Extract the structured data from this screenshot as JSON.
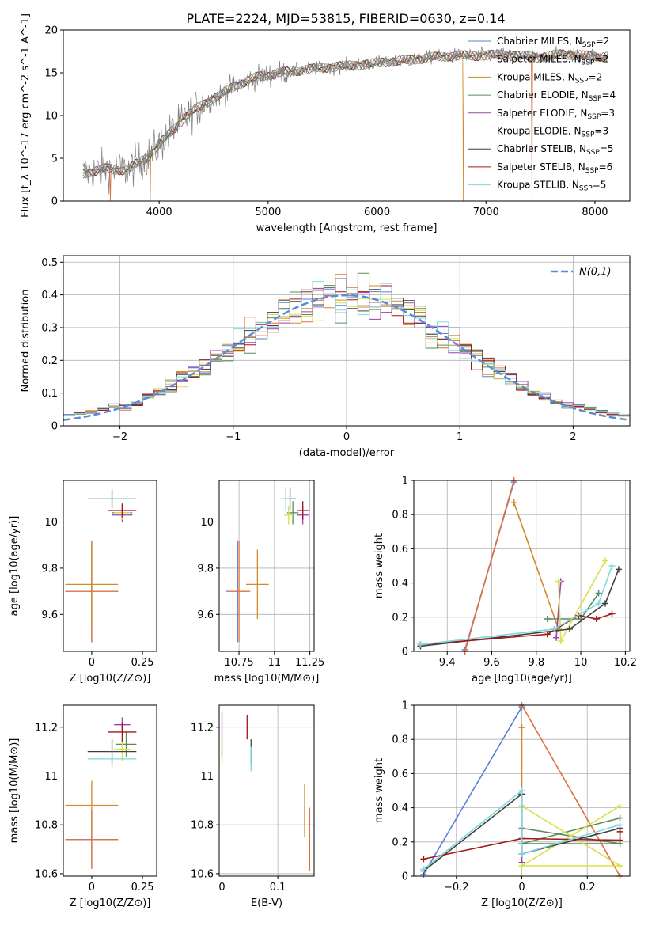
{
  "title": "PLATE=2224, MJD=53815, FIBERID=0630, z=0.14",
  "models": [
    {
      "name": "Chabrier MILES",
      "nssp": "2",
      "color": "#5b7fd6"
    },
    {
      "name": "Salpeter MILES",
      "nssp": "2",
      "color": "#e0703a"
    },
    {
      "name": "Kroupa MILES",
      "nssp": "2",
      "color": "#d08a2a"
    },
    {
      "name": "Chabrier ELODIE",
      "nssp": "4",
      "color": "#5a8a5a"
    },
    {
      "name": "Salpeter ELODIE",
      "nssp": "3",
      "color": "#a040b0"
    },
    {
      "name": "Kroupa ELODIE",
      "nssp": "3",
      "color": "#d8e04a"
    },
    {
      "name": "Chabrier STELIB",
      "nssp": "5",
      "color": "#404040"
    },
    {
      "name": "Salpeter STELIB",
      "nssp": "6",
      "color": "#a01818"
    },
    {
      "name": "Kroupa STELIB",
      "nssp": "5",
      "color": "#7ed8e0"
    }
  ],
  "chart_data": [
    {
      "id": "spectrum",
      "type": "line",
      "xlabel": "wavelength [Angstrom, rest frame]",
      "ylabel": "Flux [f_λ 10^-17 erg cm^-2 s^-1 A^-1]",
      "xlim": [
        3120,
        8320
      ],
      "ylim": [
        0,
        20
      ],
      "xticks": [
        4000,
        5000,
        6000,
        7000,
        8000
      ],
      "yticks": [
        0,
        5,
        10,
        15,
        20
      ],
      "observed_color": "#808080",
      "spectrum_knots": {
        "x": [
          3300,
          3500,
          3700,
          3900,
          4100,
          4300,
          4500,
          4700,
          4900,
          5100,
          5300,
          5500,
          5700,
          5900,
          6100,
          6300,
          6500,
          6700,
          6900,
          7100,
          7300,
          7500,
          7700,
          7900,
          8100
        ],
        "y": [
          3.2,
          3.8,
          3.6,
          5.2,
          8.0,
          10.5,
          12.0,
          13.5,
          14.5,
          15.0,
          15.3,
          15.6,
          15.8,
          16.0,
          16.3,
          16.5,
          16.8,
          17.0,
          17.0,
          17.1,
          17.0,
          16.8,
          17.2,
          17.0,
          16.9
        ]
      },
      "model_drops": [
        {
          "model": "Salpeter MILES",
          "x": 3550
        },
        {
          "model": "Kroupa MILES",
          "x": 3920
        },
        {
          "model": "Kroupa MILES",
          "x": 6790
        },
        {
          "model": "Salpeter MILES",
          "x": 7420
        }
      ]
    },
    {
      "id": "residuals",
      "type": "line",
      "xlabel": "(data-model)/error",
      "ylabel": "Normed distribution",
      "xlim": [
        -2.5,
        2.5
      ],
      "ylim": [
        0,
        0.52
      ],
      "xticks": [
        -2,
        -1,
        0,
        1,
        2
      ],
      "yticks": [
        0.0,
        0.1,
        0.2,
        0.3,
        0.4,
        0.5
      ],
      "legend": "N(0,1)",
      "legend_loc": "top-right",
      "grid": true,
      "normal_color": "#5b8bd8",
      "bin_width": 0.1
    },
    {
      "id": "age-vs-Z",
      "type": "scatter",
      "xlabel": "Z [log10(Z/Z⊙)]",
      "ylabel": "age  [log10(age/yr)]",
      "xlim": [
        -0.14,
        0.32
      ],
      "ylim": [
        9.44,
        10.18
      ],
      "xticks": [
        0.0,
        0.25
      ],
      "yticks": [
        9.6,
        9.8,
        10.0
      ],
      "errorbars": [
        {
          "model": "Chabrier MILES",
          "x": 0.0,
          "y": 9.7,
          "xerr": 0.13,
          "yerr": 0.22
        },
        {
          "model": "Salpeter MILES",
          "x": 0.0,
          "y": 9.7,
          "xerr": 0.13,
          "yerr": 0.22
        },
        {
          "model": "Kroupa MILES",
          "x": 0.0,
          "y": 9.73,
          "xerr": 0.13,
          "yerr": 0.18
        },
        {
          "model": "Chabrier ELODIE",
          "x": 0.15,
          "y": 10.04,
          "xerr": 0.05,
          "yerr": 0.03
        },
        {
          "model": "Salpeter ELODIE",
          "x": 0.15,
          "y": 10.03,
          "xerr": 0.05,
          "yerr": 0.03
        },
        {
          "model": "Kroupa ELODIE",
          "x": 0.15,
          "y": 10.04,
          "xerr": 0.04,
          "yerr": 0.03
        },
        {
          "model": "Chabrier STELIB",
          "x": 0.1,
          "y": 10.1,
          "xerr": 0.12,
          "yerr": 0.04
        },
        {
          "model": "Salpeter STELIB",
          "x": 0.15,
          "y": 10.05,
          "xerr": 0.07,
          "yerr": 0.03
        },
        {
          "model": "Kroupa STELIB",
          "x": 0.1,
          "y": 10.1,
          "xerr": 0.12,
          "yerr": 0.04
        }
      ]
    },
    {
      "id": "age-vs-mass",
      "type": "scatter",
      "xlabel": "mass [log10(M/M⊙)]",
      "ylabel": "",
      "xlim": [
        10.61,
        11.28
      ],
      "ylim": [
        9.44,
        10.18
      ],
      "xticks": [
        10.75,
        11.0,
        11.25
      ],
      "yticks": [
        9.6,
        9.8,
        10.0
      ],
      "grid": true,
      "errorbars": [
        {
          "model": "Chabrier MILES",
          "x": 10.74,
          "y": 9.7,
          "xerr": 0.08,
          "yerr": 0.22
        },
        {
          "model": "Salpeter MILES",
          "x": 10.75,
          "y": 9.7,
          "xerr": 0.08,
          "yerr": 0.22
        },
        {
          "model": "Kroupa MILES",
          "x": 10.88,
          "y": 9.73,
          "xerr": 0.08,
          "yerr": 0.15
        },
        {
          "model": "Chabrier ELODIE",
          "x": 11.13,
          "y": 10.04,
          "xerr": 0.04,
          "yerr": 0.05
        },
        {
          "model": "Salpeter ELODIE",
          "x": 11.2,
          "y": 10.03,
          "xerr": 0.04,
          "yerr": 0.04
        },
        {
          "model": "Kroupa ELODIE",
          "x": 11.1,
          "y": 10.03,
          "xerr": 0.03,
          "yerr": 0.04
        },
        {
          "model": "Chabrier STELIB",
          "x": 11.11,
          "y": 10.1,
          "xerr": 0.04,
          "yerr": 0.05
        },
        {
          "model": "Salpeter STELIB",
          "x": 11.2,
          "y": 10.05,
          "xerr": 0.04,
          "yerr": 0.04
        },
        {
          "model": "Kroupa STELIB",
          "x": 11.08,
          "y": 10.1,
          "xerr": 0.04,
          "yerr": 0.05
        }
      ]
    },
    {
      "id": "massweight-vs-age",
      "type": "line",
      "xlabel": "age  [log10(age/yr)]",
      "ylabel": "mass weight",
      "xlim": [
        9.25,
        10.22
      ],
      "ylim": [
        0,
        1
      ],
      "xticks": [
        9.4,
        9.6,
        9.8,
        10.0,
        10.2
      ],
      "yticks": [
        0.0,
        0.2,
        0.4,
        0.6,
        0.8,
        1.0
      ],
      "grid": true,
      "series": [
        {
          "model": "Chabrier MILES",
          "x": [
            9.48,
            9.7
          ],
          "y": [
            0.01,
            0.99
          ]
        },
        {
          "model": "Salpeter MILES",
          "x": [
            9.48,
            9.7
          ],
          "y": [
            0.0,
            1.0
          ]
        },
        {
          "model": "Kroupa MILES",
          "x": [
            9.7,
            9.9
          ],
          "y": [
            0.87,
            0.13
          ]
        },
        {
          "model": "Chabrier ELODIE",
          "x": [
            9.85,
            10.0,
            10.08
          ],
          "y": [
            0.19,
            0.19,
            0.34
          ]
        },
        {
          "model": "Salpeter ELODIE",
          "x": [
            9.89,
            9.91
          ],
          "y": [
            0.08,
            0.41
          ]
        },
        {
          "model": "Kroupa ELODIE",
          "x": [
            9.9,
            9.91,
            10.11
          ],
          "y": [
            0.41,
            0.06,
            0.53
          ]
        },
        {
          "model": "Chabrier STELIB",
          "x": [
            9.28,
            9.95,
            10.11,
            10.17
          ],
          "y": [
            0.03,
            0.13,
            0.28,
            0.48
          ]
        },
        {
          "model": "Salpeter STELIB",
          "x": [
            9.28,
            9.85,
            9.99,
            10.07,
            10.14
          ],
          "y": [
            0.04,
            0.1,
            0.21,
            0.19,
            0.22
          ]
        },
        {
          "model": "Kroupa STELIB",
          "x": [
            9.28,
            9.88,
            10.08,
            10.14
          ],
          "y": [
            0.04,
            0.13,
            0.28,
            0.5
          ]
        }
      ]
    },
    {
      "id": "mass-vs-Z",
      "type": "scatter",
      "xlabel": "Z [log10(Z/Z⊙)]",
      "ylabel": "mass [log10(M/M⊙)]",
      "xlim": [
        -0.14,
        0.32
      ],
      "ylim": [
        10.59,
        11.29
      ],
      "xticks": [
        0.0,
        0.25
      ],
      "yticks": [
        10.6,
        10.8,
        11.0,
        11.2
      ],
      "errorbars": [
        {
          "model": "Chabrier MILES",
          "x": 0.0,
          "y": 10.74,
          "xerr": 0.13,
          "yerr": 0.12
        },
        {
          "model": "Salpeter MILES",
          "x": 0.0,
          "y": 10.74,
          "xerr": 0.13,
          "yerr": 0.12
        },
        {
          "model": "Kroupa MILES",
          "x": 0.0,
          "y": 10.88,
          "xerr": 0.13,
          "yerr": 0.1
        },
        {
          "model": "Chabrier ELODIE",
          "x": 0.17,
          "y": 11.13,
          "xerr": 0.05,
          "yerr": 0.05
        },
        {
          "model": "Salpeter ELODIE",
          "x": 0.15,
          "y": 11.21,
          "xerr": 0.04,
          "yerr": 0.03
        },
        {
          "model": "Kroupa ELODIE",
          "x": 0.15,
          "y": 11.11,
          "xerr": 0.04,
          "yerr": 0.05
        },
        {
          "model": "Chabrier STELIB",
          "x": 0.1,
          "y": 11.1,
          "xerr": 0.12,
          "yerr": 0.05
        },
        {
          "model": "Salpeter STELIB",
          "x": 0.15,
          "y": 11.18,
          "xerr": 0.07,
          "yerr": 0.04
        },
        {
          "model": "Kroupa STELIB",
          "x": 0.1,
          "y": 11.07,
          "xerr": 0.12,
          "yerr": 0.04
        }
      ]
    },
    {
      "id": "mass-vs-ebv",
      "type": "scatter",
      "xlabel": "E(B-V)",
      "ylabel": "",
      "xlim": [
        -0.005,
        0.165
      ],
      "ylim": [
        10.59,
        11.29
      ],
      "xticks": [
        0.0,
        0.1
      ],
      "yticks": [
        10.6,
        10.8,
        11.0,
        11.2
      ],
      "grid": true,
      "errorbars": [
        {
          "model": "Chabrier MILES",
          "x": 0.157,
          "y": 10.74,
          "xerr": 0.0,
          "yerr": 0.13
        },
        {
          "model": "Salpeter MILES",
          "x": 0.157,
          "y": 10.74,
          "xerr": 0.0,
          "yerr": 0.13
        },
        {
          "model": "Kroupa MILES",
          "x": 0.148,
          "y": 10.86,
          "xerr": 0.0,
          "yerr": 0.11
        },
        {
          "model": "Chabrier ELODIE",
          "x": 0.0,
          "y": 11.12,
          "xerr": 0.0,
          "yerr": 0.04
        },
        {
          "model": "Salpeter ELODIE",
          "x": 0.0,
          "y": 11.21,
          "xerr": 0.0,
          "yerr": 0.05
        },
        {
          "model": "Kroupa ELODIE",
          "x": 0.0,
          "y": 11.1,
          "xerr": 0.0,
          "yerr": 0.05
        },
        {
          "model": "Chabrier STELIB",
          "x": 0.052,
          "y": 11.1,
          "xerr": 0.0,
          "yerr": 0.05
        },
        {
          "model": "Salpeter STELIB",
          "x": 0.045,
          "y": 11.2,
          "xerr": 0.0,
          "yerr": 0.05
        },
        {
          "model": "Kroupa STELIB",
          "x": 0.052,
          "y": 11.07,
          "xerr": 0.0,
          "yerr": 0.05
        }
      ]
    },
    {
      "id": "massweight-vs-Z",
      "type": "line",
      "xlabel": "Z [log10(Z/Z⊙)]",
      "ylabel": "mass weight",
      "xlim": [
        -0.33,
        0.33
      ],
      "ylim": [
        0,
        1
      ],
      "xticks": [
        -0.2,
        0.0,
        0.2
      ],
      "yticks": [
        0.0,
        0.2,
        0.4,
        0.6,
        0.8,
        1.0
      ],
      "grid": true,
      "series": [
        {
          "model": "Chabrier MILES",
          "x": [
            -0.3,
            0.0
          ],
          "y": [
            0.01,
            0.99
          ]
        },
        {
          "model": "Salpeter MILES",
          "x": [
            0.0,
            0.3
          ],
          "y": [
            1.0,
            0.0
          ]
        },
        {
          "model": "Kroupa MILES",
          "x": [
            0.0,
            0.0
          ],
          "y": [
            0.13,
            0.87
          ]
        },
        {
          "model": "Chabrier ELODIE",
          "x": [
            0.0,
            0.3,
            0.0,
            0.3
          ],
          "y": [
            0.28,
            0.19,
            0.19,
            0.34
          ]
        },
        {
          "model": "Salpeter ELODIE",
          "x": [
            0.0,
            0.0
          ],
          "y": [
            0.08,
            0.41
          ]
        },
        {
          "model": "Kroupa ELODIE",
          "x": [
            0.0,
            0.3,
            0.0,
            0.3
          ],
          "y": [
            0.41,
            0.06,
            0.06,
            0.41
          ]
        },
        {
          "model": "Chabrier STELIB",
          "x": [
            -0.3,
            0.0,
            0.0,
            0.3
          ],
          "y": [
            0.03,
            0.48,
            0.13,
            0.28
          ]
        },
        {
          "model": "Salpeter STELIB",
          "x": [
            -0.3,
            0.0,
            0.3,
            0.3
          ],
          "y": [
            0.1,
            0.22,
            0.21,
            0.26
          ]
        },
        {
          "model": "Kroupa STELIB",
          "x": [
            -0.3,
            0.0,
            0.0,
            0.3
          ],
          "y": [
            0.04,
            0.5,
            0.13,
            0.3
          ]
        }
      ]
    }
  ]
}
